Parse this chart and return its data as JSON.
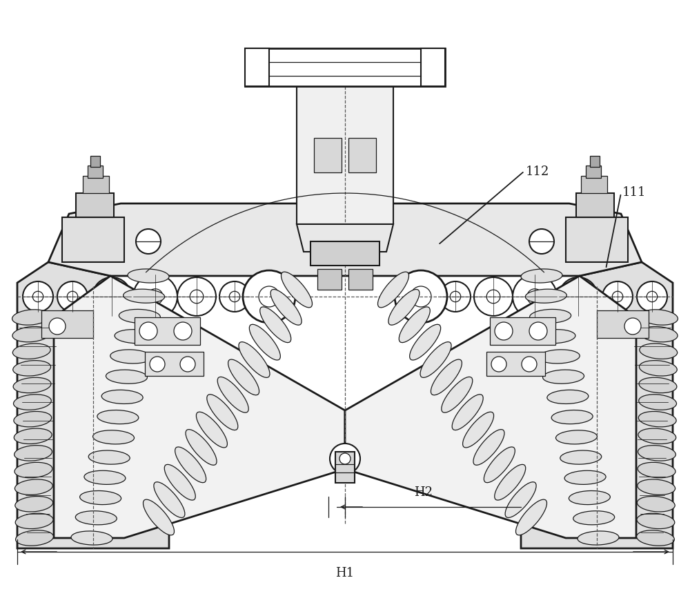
{
  "bg_color": "#ffffff",
  "line_color": "#1a1a1a",
  "dashed_color": "#555555",
  "label_112": "112",
  "label_111": "111",
  "label_H1": "H1",
  "label_H2": "H2",
  "annotation_fontsize": 12,
  "fig_width": 10.0,
  "fig_height": 8.67
}
